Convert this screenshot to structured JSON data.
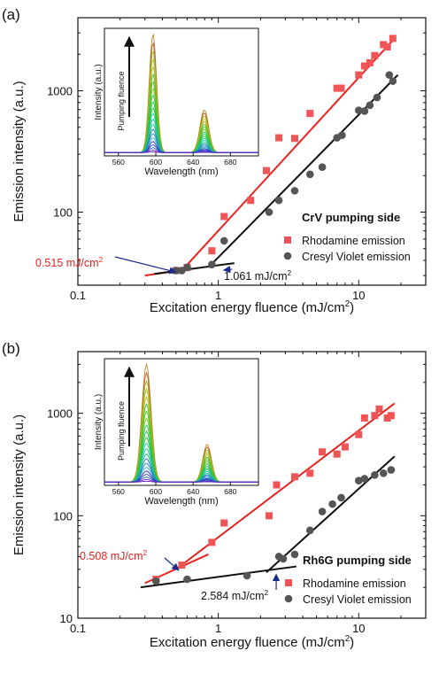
{
  "chart_data": [
    {
      "panel_label": "(a)",
      "type": "scatter",
      "x_scale": "log",
      "y_scale": "log",
      "xlim": [
        0.1,
        30
      ],
      "ylim": [
        25,
        4000
      ],
      "x_ticks": [
        0.1,
        1,
        10
      ],
      "x_tick_labels": [
        "0.1",
        "1",
        "10"
      ],
      "y_ticks": [
        100,
        1000
      ],
      "y_tick_labels": [
        "100",
        "1000"
      ],
      "xlabel": "Excitation energy fluence (mJ/cm²)",
      "ylabel": "Emission intensity (a.u.)",
      "legend_title": "CrV pumping side",
      "legend_position": "lower-right",
      "series": [
        {
          "name": "Rhodamine emission",
          "marker": "square",
          "color": "#f05454",
          "x": [
            0.5,
            0.6,
            0.9,
            1.1,
            1.7,
            2.2,
            2.7,
            3.5,
            4.5,
            7.0,
            7.5,
            10.0,
            11.0,
            12.0,
            13.0,
            15.0,
            16.0,
            17.5
          ],
          "y": [
            33,
            35,
            48,
            92,
            125,
            220,
            410,
            405,
            650,
            1050,
            1050,
            1350,
            1600,
            1700,
            1950,
            2400,
            2300,
            2700
          ]
        },
        {
          "name": "Cresyl Violet emission",
          "marker": "circle",
          "color": "#555555",
          "x": [
            0.5,
            0.55,
            0.6,
            0.9,
            1.1,
            2.3,
            2.7,
            3.5,
            4.5,
            5.5,
            7.0,
            7.6,
            10.0,
            11.0,
            12.0,
            13.5,
            16.5,
            17.5
          ],
          "y": [
            33,
            33,
            35,
            37,
            58,
            100,
            125,
            150,
            205,
            235,
            410,
            430,
            690,
            680,
            760,
            880,
            1350,
            1200
          ]
        }
      ],
      "fit_lines": [
        {
          "color": "#e8231f",
          "x": [
            0.3,
            0.62
          ],
          "y": [
            30,
            34
          ]
        },
        {
          "color": "#e8231f",
          "x": [
            0.55,
            18
          ],
          "y": [
            33,
            2700
          ]
        },
        {
          "color": "#111111",
          "x": [
            0.35,
            1.3
          ],
          "y": [
            31,
            38
          ]
        },
        {
          "color": "#111111",
          "x": [
            0.85,
            19
          ],
          "y": [
            35,
            1350
          ]
        }
      ],
      "annotations": [
        {
          "text": "0.515 mJ/cm²",
          "color": "#e8231f",
          "arrow_to": [
            0.515,
            32
          ]
        },
        {
          "text": "1.061 mJ/cm²",
          "color": "#111111",
          "arrow_to": [
            1.061,
            35
          ]
        }
      ],
      "inset": {
        "xlabel": "Wavelength (nm)",
        "ylabel": "Intensity (a.u.)",
        "arrow_label": "Pumping fluence",
        "xlim": [
          545,
          710
        ],
        "x_ticks": [
          560,
          600,
          640,
          680
        ],
        "x_tick_labels": [
          "560",
          "600",
          "640",
          "680"
        ],
        "peaks": [
          {
            "center": 597,
            "width": 5.5,
            "max": 1.0
          },
          {
            "center": 652,
            "width": 6.5,
            "max": 0.36
          }
        ]
      }
    },
    {
      "panel_label": "(b)",
      "type": "scatter",
      "x_scale": "log",
      "y_scale": "log",
      "xlim": [
        0.1,
        30
      ],
      "ylim": [
        10,
        4000
      ],
      "x_ticks": [
        0.1,
        1,
        10
      ],
      "x_tick_labels": [
        "0.1",
        "1",
        "10"
      ],
      "y_ticks": [
        10,
        100,
        1000
      ],
      "y_tick_labels": [
        "10",
        "100",
        "1000"
      ],
      "xlabel": "Excitation energy fluence (mJ/cm²)",
      "ylabel": "Emission intensity (a.u.)",
      "legend_title": "Rh6G pumping side",
      "legend_position": "lower-right",
      "series": [
        {
          "name": "Rhodamine emission",
          "marker": "square",
          "color": "#f05454",
          "x": [
            0.36,
            0.55,
            0.9,
            1.1,
            2.3,
            2.6,
            3.5,
            4.5,
            5.5,
            7.0,
            8.0,
            10.0,
            11.0,
            13.0,
            14.0,
            16.0,
            17.0
          ],
          "y": [
            24,
            33,
            55,
            85,
            100,
            200,
            240,
            260,
            420,
            400,
            470,
            620,
            900,
            950,
            1100,
            900,
            950
          ]
        },
        {
          "name": "Cresyl Violet emission",
          "marker": "circle",
          "color": "#555555",
          "x": [
            0.36,
            0.6,
            1.6,
            2.7,
            2.9,
            3.5,
            4.5,
            5.5,
            6.5,
            7.5,
            10.0,
            11.0,
            13.0,
            15.0,
            17.0
          ],
          "y": [
            23,
            24,
            26,
            40,
            38,
            42,
            72,
            110,
            130,
            150,
            220,
            230,
            250,
            260,
            280
          ]
        }
      ],
      "fit_lines": [
        {
          "color": "#e8231f",
          "x": [
            0.3,
            0.85
          ],
          "y": [
            22,
            42
          ]
        },
        {
          "color": "#e8231f",
          "x": [
            0.5,
            18
          ],
          "y": [
            30,
            1250
          ]
        },
        {
          "color": "#111111",
          "x": [
            0.28,
            3.6
          ],
          "y": [
            20,
            32
          ]
        },
        {
          "color": "#111111",
          "x": [
            2.2,
            18
          ],
          "y": [
            28,
            380
          ]
        }
      ],
      "annotations": [
        {
          "text": "0.508 mJ/cm²",
          "color": "#e8231f",
          "arrow_to": [
            0.508,
            30
          ]
        },
        {
          "text": "2.584 mJ/cm²",
          "color": "#111111",
          "arrow_to": [
            2.584,
            29
          ]
        }
      ],
      "inset": {
        "xlabel": "Wavelength (nm)",
        "ylabel": "Intensity (a.u.)",
        "arrow_label": "Pumping fluence",
        "xlim": [
          545,
          710
        ],
        "x_ticks": [
          560,
          600,
          640,
          680
        ],
        "x_tick_labels": [
          "560",
          "600",
          "640",
          "680"
        ],
        "peaks": [
          {
            "center": 590,
            "width": 7.0,
            "max": 1.0
          },
          {
            "center": 655,
            "width": 6.5,
            "max": 0.32
          }
        ]
      }
    }
  ]
}
